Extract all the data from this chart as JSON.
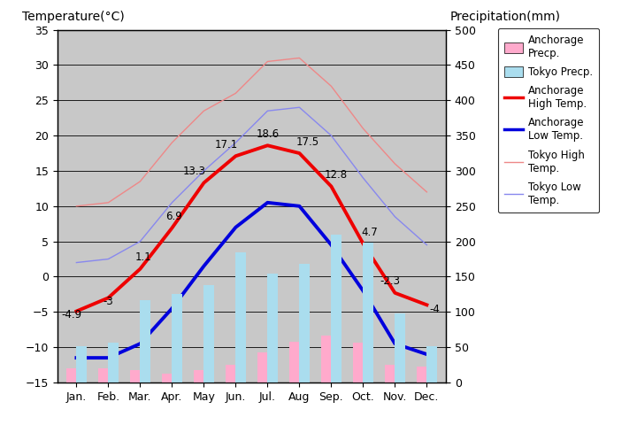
{
  "months": [
    "Jan.",
    "Feb.",
    "Mar.",
    "Apr.",
    "May",
    "Jun.",
    "Jul.",
    "Aug",
    "Sep.",
    "Oct.",
    "Nov.",
    "Dec."
  ],
  "anchorage_high_temp": [
    -4.9,
    -3.0,
    1.1,
    6.9,
    13.3,
    17.1,
    18.6,
    17.5,
    12.8,
    4.7,
    -2.3,
    -4.0
  ],
  "anchorage_low_temp": [
    -11.5,
    -11.5,
    -9.5,
    -4.5,
    1.5,
    7.0,
    10.5,
    10.0,
    4.5,
    -2.0,
    -9.5,
    -11.0
  ],
  "tokyo_high_temp": [
    10.0,
    10.5,
    13.5,
    19.0,
    23.5,
    26.0,
    30.5,
    31.0,
    27.0,
    21.0,
    16.0,
    12.0
  ],
  "tokyo_low_temp": [
    2.0,
    2.5,
    5.0,
    10.5,
    15.0,
    19.0,
    23.5,
    24.0,
    20.0,
    14.0,
    8.5,
    4.5
  ],
  "anchorage_precip": [
    20,
    20,
    18,
    12,
    18,
    25,
    43,
    58,
    67,
    56,
    25,
    23
  ],
  "tokyo_precip": [
    52,
    56,
    117,
    125,
    138,
    185,
    154,
    168,
    210,
    198,
    98,
    51
  ],
  "temp_ylim": [
    -15,
    35
  ],
  "precip_ylim": [
    0,
    500
  ],
  "bg_color": "#c8c8c8",
  "anchorage_high_color": "#ee0000",
  "anchorage_low_color": "#0000dd",
  "tokyo_high_color": "#ee8888",
  "tokyo_low_color": "#8888ee",
  "anchorage_precip_color": "#ffaacc",
  "tokyo_precip_color": "#aaddee",
  "title_left": "Temperature(°C)",
  "title_right": "Precipitation(mm)",
  "anc_high_labels": [
    "-4.9",
    "-3",
    "1.1",
    "6.9",
    "13.3",
    "17.1",
    "18.6",
    "17.5",
    "12.8",
    "4.7",
    "-2.3",
    "-4"
  ],
  "anc_high_label_dx": [
    -0.15,
    0.0,
    0.1,
    0.05,
    -0.3,
    -0.3,
    0.0,
    0.25,
    0.15,
    0.2,
    -0.15,
    0.25
  ],
  "anc_high_label_dy": [
    -1.3,
    -1.3,
    0.8,
    0.8,
    0.8,
    0.8,
    0.8,
    0.8,
    0.8,
    0.8,
    0.8,
    -1.5
  ]
}
